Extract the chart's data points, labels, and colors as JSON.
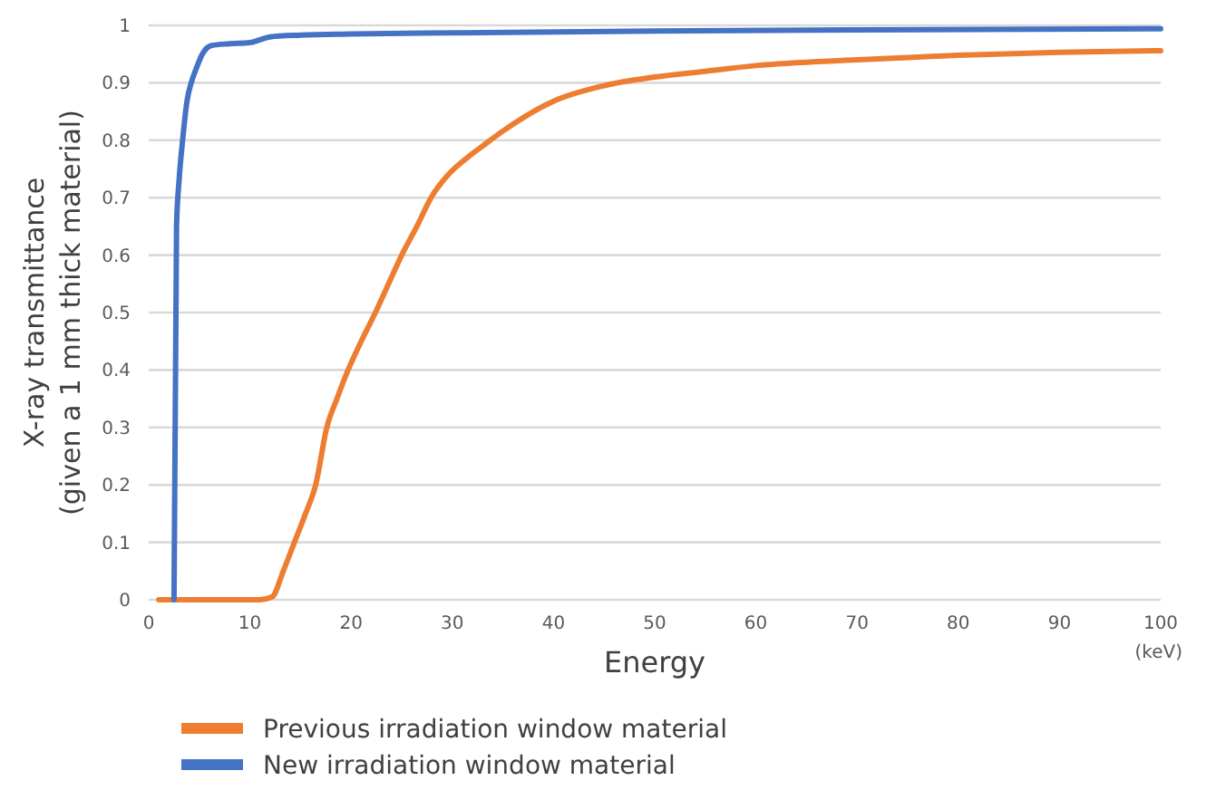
{
  "chart_data": {
    "type": "line",
    "xlabel": "Energy",
    "ylabel": "X-ray transmittance\n(given a 1 mm thick material)",
    "annotations": [
      "(keV)"
    ],
    "xlim": [
      0,
      100
    ],
    "xticks": [
      0,
      10,
      20,
      30,
      40,
      50,
      60,
      70,
      80,
      90,
      100
    ],
    "ylim": [
      0,
      1
    ],
    "yticks": [
      0,
      0.1,
      0.2,
      0.3,
      0.4,
      0.5,
      0.6,
      0.7,
      0.8,
      0.9,
      1
    ],
    "grid": "y",
    "legend": "bottom left",
    "marker": "none",
    "line_style": "solid",
    "series": [
      {
        "name": "Previous irradiation window material",
        "color": "#ed7d31",
        "x": [
          1,
          5,
          11,
          12.2,
          13.3,
          14.4,
          15.5,
          16.5,
          17.6,
          18.6,
          19.7,
          21,
          22.4,
          23.7,
          25,
          26.5,
          27.9,
          29.6,
          31.5,
          33,
          35,
          40,
          45,
          50,
          55,
          60,
          70,
          80,
          90,
          100
        ],
        "values": [
          0,
          0,
          0,
          0.005,
          0.05,
          0.1,
          0.15,
          0.2,
          0.3,
          0.35,
          0.4,
          0.45,
          0.5,
          0.55,
          0.6,
          0.65,
          0.7,
          0.74,
          0.77,
          0.79,
          0.816,
          0.868,
          0.895,
          0.91,
          0.92,
          0.93,
          0.94,
          0.948,
          0.953,
          0.956
        ]
      },
      {
        "name": "New irradiation window material",
        "color": "#4472c4",
        "x": [
          2.5,
          2.75,
          3,
          3.35,
          3.8,
          4.2,
          4.7,
          5.3,
          6.2,
          8,
          10,
          11,
          12,
          15,
          20,
          30,
          50,
          70,
          100
        ],
        "values": [
          0,
          0.65,
          0.73,
          0.8,
          0.87,
          0.9,
          0.925,
          0.95,
          0.965,
          0.968,
          0.97,
          0.975,
          0.98,
          0.983,
          0.985,
          0.987,
          0.99,
          0.992,
          0.994
        ]
      }
    ]
  }
}
